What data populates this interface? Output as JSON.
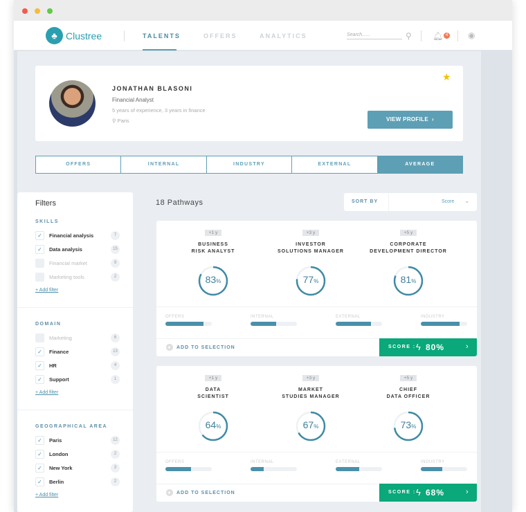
{
  "nav": {
    "brand": "Clustree",
    "tabs": [
      {
        "label": "TALENTS",
        "active": true
      },
      {
        "label": "OFFERS",
        "active": false
      },
      {
        "label": "ANALYTICS",
        "active": false
      }
    ],
    "search_placeholder": "Search......",
    "notification_count": "4"
  },
  "profile": {
    "name": "JONATHAN BLASONI",
    "title": "Financial Analyst",
    "experience": "5 years of experience, 3 years in finance",
    "location": "Paris",
    "starred": true,
    "view_profile_label": "VIEW PROFILE"
  },
  "view_tabs": [
    {
      "label": "OFFERS",
      "active": false
    },
    {
      "label": "INTERNAL",
      "active": false
    },
    {
      "label": "INDUSTRY",
      "active": false
    },
    {
      "label": "EXTERNAL",
      "active": false
    },
    {
      "label": "AVERAGE",
      "active": true
    }
  ],
  "filters": {
    "title": "Filters",
    "add_filter_label": "+ Add filter",
    "sections": [
      {
        "heading": "SKILLS",
        "items": [
          {
            "label": "Financial analysis",
            "count": "7",
            "checked": true
          },
          {
            "label": "Data analysis",
            "count": "15",
            "checked": true
          },
          {
            "label": "Financial market",
            "count": "9",
            "checked": false
          },
          {
            "label": "Marketing tools",
            "count": "2",
            "checked": false
          }
        ]
      },
      {
        "heading": "DOMAIN",
        "items": [
          {
            "label": "Marketing",
            "count": "6",
            "checked": false
          },
          {
            "label": "Finance",
            "count": "13",
            "checked": true
          },
          {
            "label": "HR",
            "count": "4",
            "checked": true
          },
          {
            "label": "Support",
            "count": "1",
            "checked": true
          }
        ]
      },
      {
        "heading": "GEOGRAPHICAL AREA",
        "items": [
          {
            "label": "Paris",
            "count": "12",
            "checked": true
          },
          {
            "label": "London",
            "count": "2",
            "checked": true
          },
          {
            "label": "New York",
            "count": "3",
            "checked": true
          },
          {
            "label": "Berlin",
            "count": "2",
            "checked": true
          }
        ]
      }
    ]
  },
  "pathways": {
    "count_label": "18 Pathways",
    "sort_label": "SORT BY",
    "sort_value": "Score",
    "bar_labels": [
      "OFFERS",
      "INTERNAL",
      "EXTERNAL",
      "INDUSTRY"
    ],
    "add_label": "ADD TO SELECTION",
    "score_label": "SCORE :",
    "cards": [
      {
        "steps": [
          {
            "years": "+1 y",
            "title": [
              "BUSINESS",
              "RISK ANALYST"
            ],
            "match": 83
          },
          {
            "years": "+3 y",
            "title": [
              "INVESTOR",
              "SOLUTIONS MANAGER"
            ],
            "match": 77
          },
          {
            "years": "+5 y",
            "title": [
              "CORPORATE",
              "DEVELOPMENT DIRECTOR"
            ],
            "match": 81
          }
        ],
        "bars": [
          82,
          55,
          76,
          83
        ],
        "score": "80%"
      },
      {
        "steps": [
          {
            "years": "+1 y",
            "title": [
              "DATA",
              "SCIENTIST"
            ],
            "match": 64
          },
          {
            "years": "+3 y",
            "title": [
              "MARKET",
              "STUDIES MANAGER"
            ],
            "match": 67
          },
          {
            "years": "+5 y",
            "title": [
              "CHIEF",
              "DATA OFFICER"
            ],
            "match": 73
          }
        ],
        "bars": [
          55,
          29,
          51,
          46
        ],
        "score": "68%"
      }
    ]
  },
  "colors": {
    "accent": "#5d9fb5",
    "score_green": "#0aa87a",
    "star": "#f2c200",
    "badge": "#f07b5a"
  }
}
